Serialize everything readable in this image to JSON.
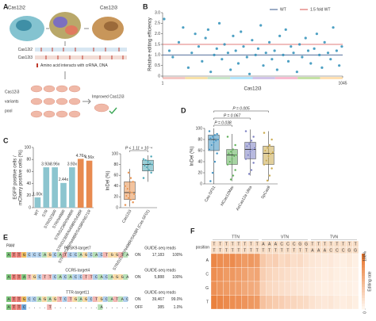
{
  "panel_labels": [
    "A",
    "B",
    "C",
    "D",
    "E",
    "F"
  ],
  "diagram_a": {
    "left_protein": "Cas12i2",
    "right_protein": "Cas12i3",
    "track_labels": [
      "Cas12i2",
      "Cas12i3"
    ],
    "track_legend": "Amino acid interacts with crRNA, DNA",
    "pool_labels": [
      "Cas12i3",
      "variants",
      "pool"
    ],
    "result": "Improved Cas12i3"
  },
  "chart_data": [
    {
      "type": "scatter",
      "ylabel": "Relative editing efficiency",
      "xlabel": "Cas12i3",
      "xlim": [
        1,
        1045
      ],
      "xticks": [
        1,
        1045
      ],
      "ylim": [
        0,
        3
      ],
      "yticks": [
        0,
        0.5,
        {
          "value": 1,
          "label": "1.0"
        },
        1.5,
        {
          "value": 2,
          "label": "2.0"
        },
        2.5,
        {
          "value": 3,
          "label": "3.0"
        }
      ],
      "color": "#2e8fb8",
      "x": [
        10,
        40,
        60,
        95,
        120,
        150,
        170,
        190,
        210,
        230,
        250,
        265,
        280,
        300,
        315,
        330,
        345,
        360,
        380,
        395,
        410,
        425,
        440,
        455,
        470,
        490,
        505,
        520,
        540,
        555,
        570,
        585,
        600,
        620,
        635,
        650,
        665,
        680,
        700,
        715,
        730,
        745,
        760,
        780,
        795,
        810,
        830,
        845,
        860,
        880,
        895,
        910,
        925,
        940,
        960,
        975,
        990,
        1010,
        1025,
        1040
      ],
      "values": [
        2.7,
        1.2,
        0.9,
        1.6,
        2.3,
        0.4,
        1.1,
        2.0,
        1.4,
        0.7,
        1.8,
        2.2,
        0.2,
        1.0,
        1.3,
        2.5,
        0.8,
        1.5,
        1.1,
        0.3,
        1.9,
        1.2,
        0.6,
        2.1,
        1.4,
        0.9,
        0.1,
        1.7,
        1.0,
        1.3,
        2.4,
        0.5,
        1.1,
        1.6,
        0.8,
        1.2,
        0.3,
        1.9,
        1.0,
        2.2,
        0.7,
        1.4,
        1.1,
        0.2,
        1.5,
        0.9,
        1.8,
        1.2,
        0.6,
        1.3,
        2.0,
        1.0,
        0.4,
        1.6,
        1.1,
        0.8,
        2.3,
        1.2,
        0.5,
        1.4
      ],
      "hlines": [
        {
          "name": "WT",
          "value": 1,
          "color": "#3a5a8c"
        },
        {
          "name": "1.5 fold WT",
          "value": 1.5,
          "color": "#d9534f"
        }
      ],
      "legend": "upper right"
    },
    {
      "type": "bar",
      "ylabel": [
        "EGFP positive cells /",
        "mCherry positive cells (%)"
      ],
      "categories": [
        "WT",
        "S7R",
        "S7R/D236R",
        "S7R/N498R",
        "S7R/D236R/N498R",
        "S7R/D236R/N498R/S438R",
        "S7R/D236R/N498R/S438R/N571R"
      ],
      "values": [
        17,
        67,
        67,
        41,
        67,
        81,
        78
      ],
      "fold_labels": [
        "1.00x",
        "3.93x",
        "3.96x",
        "2.44x",
        "3.93x",
        "4.76x",
        "4.56x"
      ],
      "colors": [
        "#8cc5cf",
        "#8cc5cf",
        "#8cc5cf",
        "#8cc5cf",
        "#8cc5cf",
        "#e88a4f",
        "#e88a4f"
      ],
      "ylim": [
        0,
        100
      ],
      "yticks": [
        0,
        20,
        40,
        60,
        80,
        100
      ]
    },
    {
      "type": "box",
      "ylabel": "InDel (%)",
      "ylim": [
        0,
        100
      ],
      "yticks": [
        0,
        20,
        40,
        60,
        80,
        100
      ],
      "comparisons": [
        "P < 1.11 × 10⁻⁴"
      ],
      "boxes": [
        {
          "name": "Cas12i3",
          "color": "#e8924f",
          "min": 2,
          "q1": 15,
          "median": 28,
          "q3": 48,
          "max": 72,
          "points": [
            5,
            10,
            15,
            18,
            22,
            25,
            28,
            30,
            35,
            40,
            48,
            55,
            65
          ]
        },
        {
          "name": "S7R/D236R/N498R/S438R (Cas-SF01)",
          "color": "#4aa5b5",
          "min": 48,
          "q1": 68,
          "median": 80,
          "q3": 88,
          "max": 97,
          "points": [
            55,
            65,
            70,
            75,
            78,
            80,
            82,
            85,
            88,
            90,
            95
          ]
        }
      ]
    },
    {
      "type": "box",
      "ylabel": "InDel (%)",
      "ylim": [
        0,
        100
      ],
      "yticks": [
        0,
        20,
        40,
        60,
        80,
        100
      ],
      "comparisons": [
        "P = 0.038",
        "P = 0.067",
        "P = 0.005"
      ],
      "boxes": [
        {
          "name": "Cas-SF01",
          "color": "#3b8fc0",
          "min": 0,
          "q1": 60,
          "median": 80,
          "q3": 88,
          "max": 100,
          "points": [
            95,
            90,
            88,
            85,
            82,
            80,
            78,
            75,
            70,
            62,
            55,
            40,
            20,
            5
          ]
        },
        {
          "name": "hfCas12Max",
          "color": "#5cae55",
          "min": 5,
          "q1": 35,
          "median": 52,
          "q3": 62,
          "max": 90,
          "points": [
            85,
            70,
            62,
            58,
            55,
            52,
            50,
            45,
            40,
            35,
            25,
            15,
            8
          ]
        },
        {
          "name": "AsCas12a Ultra",
          "color": "#7b7fc2",
          "min": 15,
          "q1": 45,
          "median": 62,
          "q3": 75,
          "max": 98,
          "points": [
            95,
            85,
            78,
            72,
            68,
            65,
            62,
            58,
            52,
            45,
            38,
            25,
            18
          ]
        },
        {
          "name": "SpCas9",
          "color": "#c9a84a",
          "min": 5,
          "q1": 35,
          "median": 55,
          "q3": 68,
          "max": 95,
          "points": [
            92,
            80,
            70,
            65,
            60,
            57,
            54,
            50,
            42,
            35,
            28,
            15,
            6
          ]
        }
      ]
    },
    {
      "type": "heatmap",
      "groups": [
        "TTN",
        "VTN",
        "TVN"
      ],
      "header_label": "position",
      "header_rows": [
        [
          "T",
          "T",
          "T",
          "T",
          "T",
          "T",
          "T",
          "T",
          "A",
          "A",
          "A",
          "C",
          "C",
          "C",
          "G",
          "G",
          "T",
          "T",
          "T",
          "T",
          "T",
          "T",
          "T",
          "T"
        ],
        [
          "T",
          "T",
          "T",
          "T",
          "T",
          "T",
          "T",
          "T",
          "T",
          "T",
          "T",
          "T",
          "T",
          "T",
          "T",
          "T",
          "A",
          "A",
          "A",
          "C",
          "C",
          "C",
          "G",
          "G"
        ]
      ],
      "rows": [
        "A",
        "C",
        "G",
        "T"
      ],
      "values": [
        [
          85,
          80,
          78,
          82,
          75,
          70,
          72,
          68,
          35,
          28,
          30,
          22,
          25,
          18,
          20,
          15,
          12,
          10,
          8,
          10,
          6,
          5,
          8,
          4
        ],
        [
          80,
          75,
          70,
          72,
          68,
          65,
          60,
          62,
          30,
          25,
          22,
          20,
          18,
          15,
          14,
          12,
          10,
          8,
          6,
          8,
          5,
          4,
          5,
          3
        ],
        [
          78,
          72,
          70,
          68,
          66,
          60,
          58,
          55,
          28,
          22,
          20,
          18,
          16,
          14,
          12,
          10,
          8,
          6,
          5,
          6,
          4,
          3,
          4,
          2
        ],
        [
          90,
          85,
          82,
          80,
          78,
          75,
          72,
          70,
          40,
          35,
          32,
          30,
          26,
          24,
          22,
          20,
          15,
          12,
          10,
          12,
          8,
          6,
          8,
          5
        ]
      ],
      "color_low": "#fff5ec",
      "color_high": "#e8742a",
      "colorbar": {
        "label": "Editing rate",
        "lim": [
          0,
          100
        ],
        "ticks": [
          0,
          {
            "value": 100,
            "label": "100%"
          }
        ]
      }
    }
  ],
  "diagram_e": {
    "pam": "PAM",
    "header": "GUIDE-seq reads",
    "targets": [
      {
        "name": "PCSK9-target7",
        "rows": [
          {
            "type": "ON",
            "sequence": "ATTGCCCAGCATCCAGCACTGGTA",
            "reads": "17,183",
            "percent": "100%"
          }
        ]
      },
      {
        "name": "CCR5-target4",
        "rows": [
          {
            "type": "ON",
            "sequence": "ATTATGCTTCACACCTTCACAGGA",
            "reads": "5,888",
            "percent": "100%"
          }
        ]
      },
      {
        "name": "TTR-target11",
        "rows": [
          {
            "type": "ON",
            "sequence": "ATTGCCAGAGTCTGAGCTGCATAC",
            "reads": "39,467",
            "percent": "99.0%"
          },
          {
            "type": "OFF",
            "sequence": "ATTC....T.........A.....",
            "reads": "385",
            "percent": "1.0%"
          }
        ]
      }
    ]
  }
}
